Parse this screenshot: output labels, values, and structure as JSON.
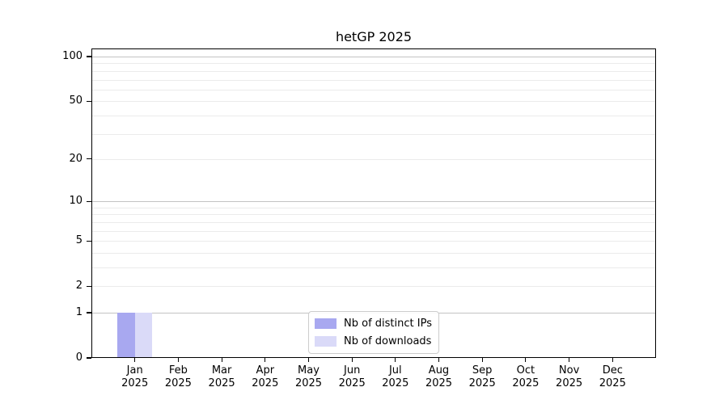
{
  "chart_data": {
    "type": "bar",
    "title": "hetGP 2025",
    "categories": [
      {
        "month": "Jan",
        "year": "2025"
      },
      {
        "month": "Feb",
        "year": "2025"
      },
      {
        "month": "Mar",
        "year": "2025"
      },
      {
        "month": "Apr",
        "year": "2025"
      },
      {
        "month": "May",
        "year": "2025"
      },
      {
        "month": "Jun",
        "year": "2025"
      },
      {
        "month": "Jul",
        "year": "2025"
      },
      {
        "month": "Aug",
        "year": "2025"
      },
      {
        "month": "Sep",
        "year": "2025"
      },
      {
        "month": "Oct",
        "year": "2025"
      },
      {
        "month": "Nov",
        "year": "2025"
      },
      {
        "month": "Dec",
        "year": "2025"
      }
    ],
    "series": [
      {
        "name": "Nb of distinct IPs",
        "color": "#a8a8f0",
        "values": [
          1,
          0,
          0,
          0,
          0,
          0,
          0,
          0,
          0,
          0,
          0,
          0
        ]
      },
      {
        "name": "Nb of downloads",
        "color": "#dadaf8",
        "values": [
          1,
          0,
          0,
          0,
          0,
          0,
          0,
          0,
          0,
          0,
          0,
          0
        ]
      }
    ],
    "xlabel": "",
    "ylabel": "",
    "y_scale": "log1p",
    "ylim": [
      0,
      113.3
    ],
    "y_ticks": [
      0,
      1,
      2,
      5,
      10,
      20,
      50,
      100
    ],
    "y_major_gridlines": [
      1,
      10,
      100
    ],
    "y_minor_gridlines": [
      2,
      3,
      4,
      5,
      6,
      7,
      8,
      9,
      20,
      30,
      40,
      50,
      60,
      70,
      80,
      90
    ],
    "grid": "horizontal",
    "legend_position": "lower center"
  },
  "colors": {
    "background": "#ffffff",
    "axis": "#000000",
    "major_grid": "#c3c3c3",
    "minor_grid": "#ebebeb",
    "legend_border": "#cccccc",
    "bar_distinct_ips": "#a8a8f0",
    "bar_downloads": "#dadaf8"
  }
}
